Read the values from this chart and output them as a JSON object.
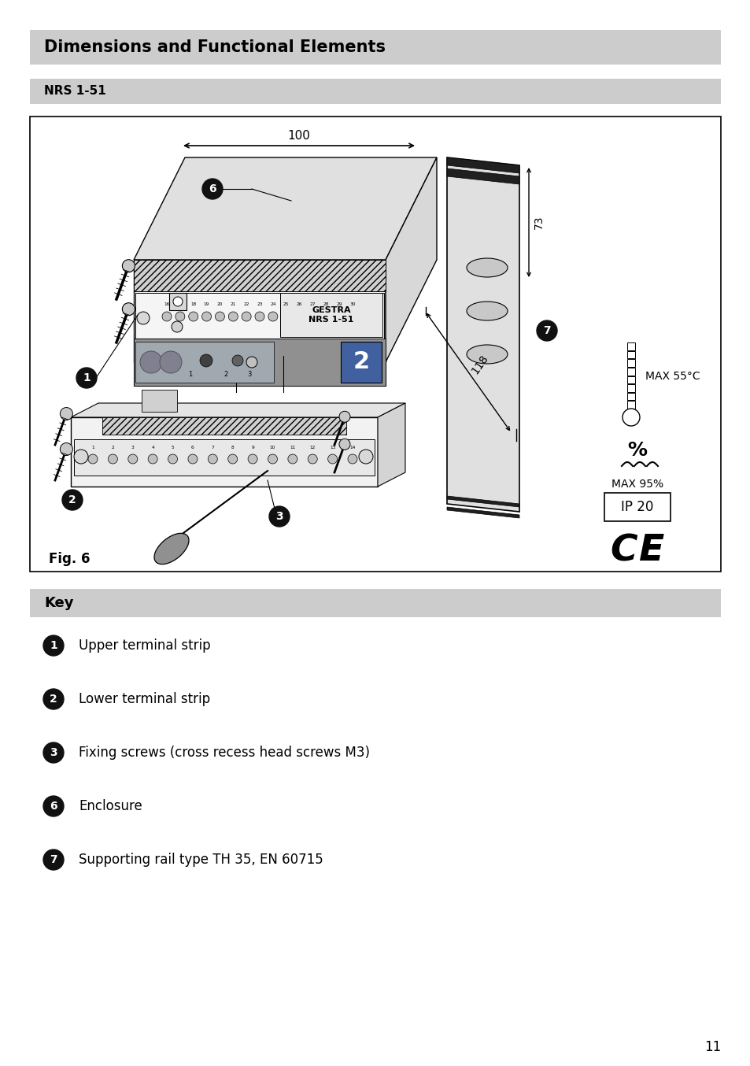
{
  "title": "Dimensions and Functional Elements",
  "subtitle": "NRS 1-51",
  "fig_label": "Fig. 6",
  "key_title": "Key",
  "key_items": [
    {
      "number": "1",
      "text": "Upper terminal strip"
    },
    {
      "number": "2",
      "text": "Lower terminal strip"
    },
    {
      "number": "3",
      "text": "Fixing screws (cross recess head screws M3)"
    },
    {
      "number": "6",
      "text": "Enclosure"
    },
    {
      "number": "7",
      "text": "Supporting rail type TH 35, EN 60715"
    }
  ],
  "dim_100": "100",
  "dim_73": "73",
  "dim_118": "118",
  "gestra_label": "GESTRA\nNRS 1-51",
  "max_temp": "MAX 55°C",
  "max_humidity": "MAX 95%",
  "ip_rating": "IP 20",
  "page_number": "11",
  "bg_color": "#ffffff",
  "header_bg": "#cccccc",
  "subheader_bg": "#cccccc",
  "key_bg": "#cccccc",
  "bullet_bg": "#111111"
}
